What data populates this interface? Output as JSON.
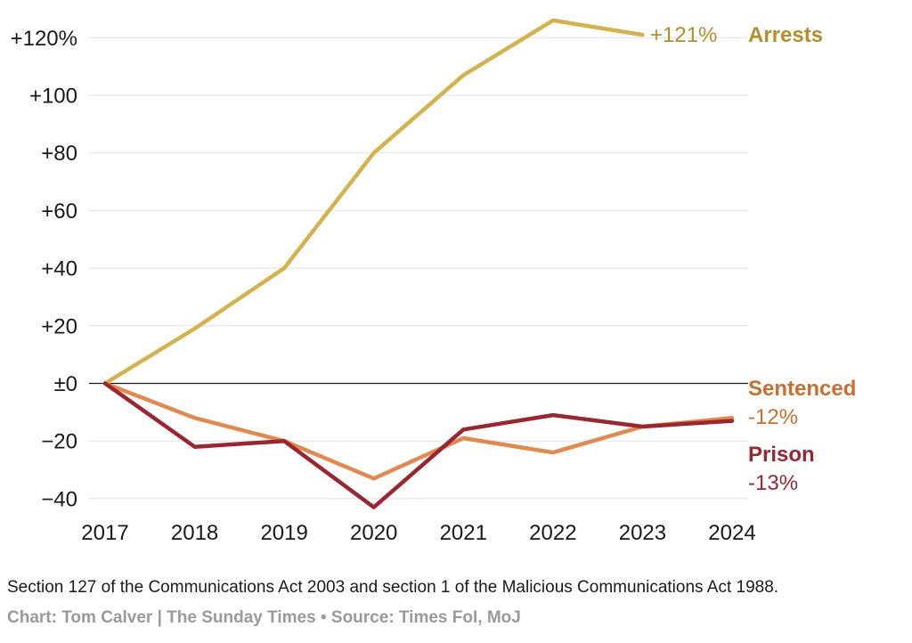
{
  "chart_data": {
    "type": "line",
    "x": [
      "2017",
      "2018",
      "2019",
      "2020",
      "2021",
      "2022",
      "2023",
      "2024"
    ],
    "yticks": [
      "+120%",
      "+100",
      "+80",
      "+60",
      "+40",
      "+20",
      "±0",
      "−20",
      "−40"
    ],
    "ytick_values": [
      120,
      100,
      80,
      60,
      40,
      20,
      0,
      -20,
      -40
    ],
    "ylim": [
      -43,
      126
    ],
    "grid": true,
    "legend": "direct labels at line ends (right)",
    "series": [
      {
        "name": "Arrests",
        "end_label": "+121%",
        "color": "#d4b24c",
        "label_color": "#b38f2a",
        "values": [
          0,
          19,
          40,
          80,
          107,
          126,
          121,
          null
        ]
      },
      {
        "name": "Sentenced",
        "end_label": "-12%",
        "color": "#e3894d",
        "label_color": "#cc6e2d",
        "values": [
          0,
          -12,
          -20,
          -33,
          -19,
          -24,
          -15,
          -12
        ]
      },
      {
        "name": "Prison",
        "end_label": "-13%",
        "color": "#9b2630",
        "label_color": "#9b2630",
        "values": [
          0,
          -22,
          -20,
          -43,
          -16,
          -11,
          -15,
          -13
        ]
      }
    ]
  },
  "footnote": "Section 127 of the Communications Act 2003 and section 1 of the Malicious Communications Act 1988.",
  "credit": "Chart: Tom Calver | The Sunday Times • Source: Times FoI, MoJ"
}
